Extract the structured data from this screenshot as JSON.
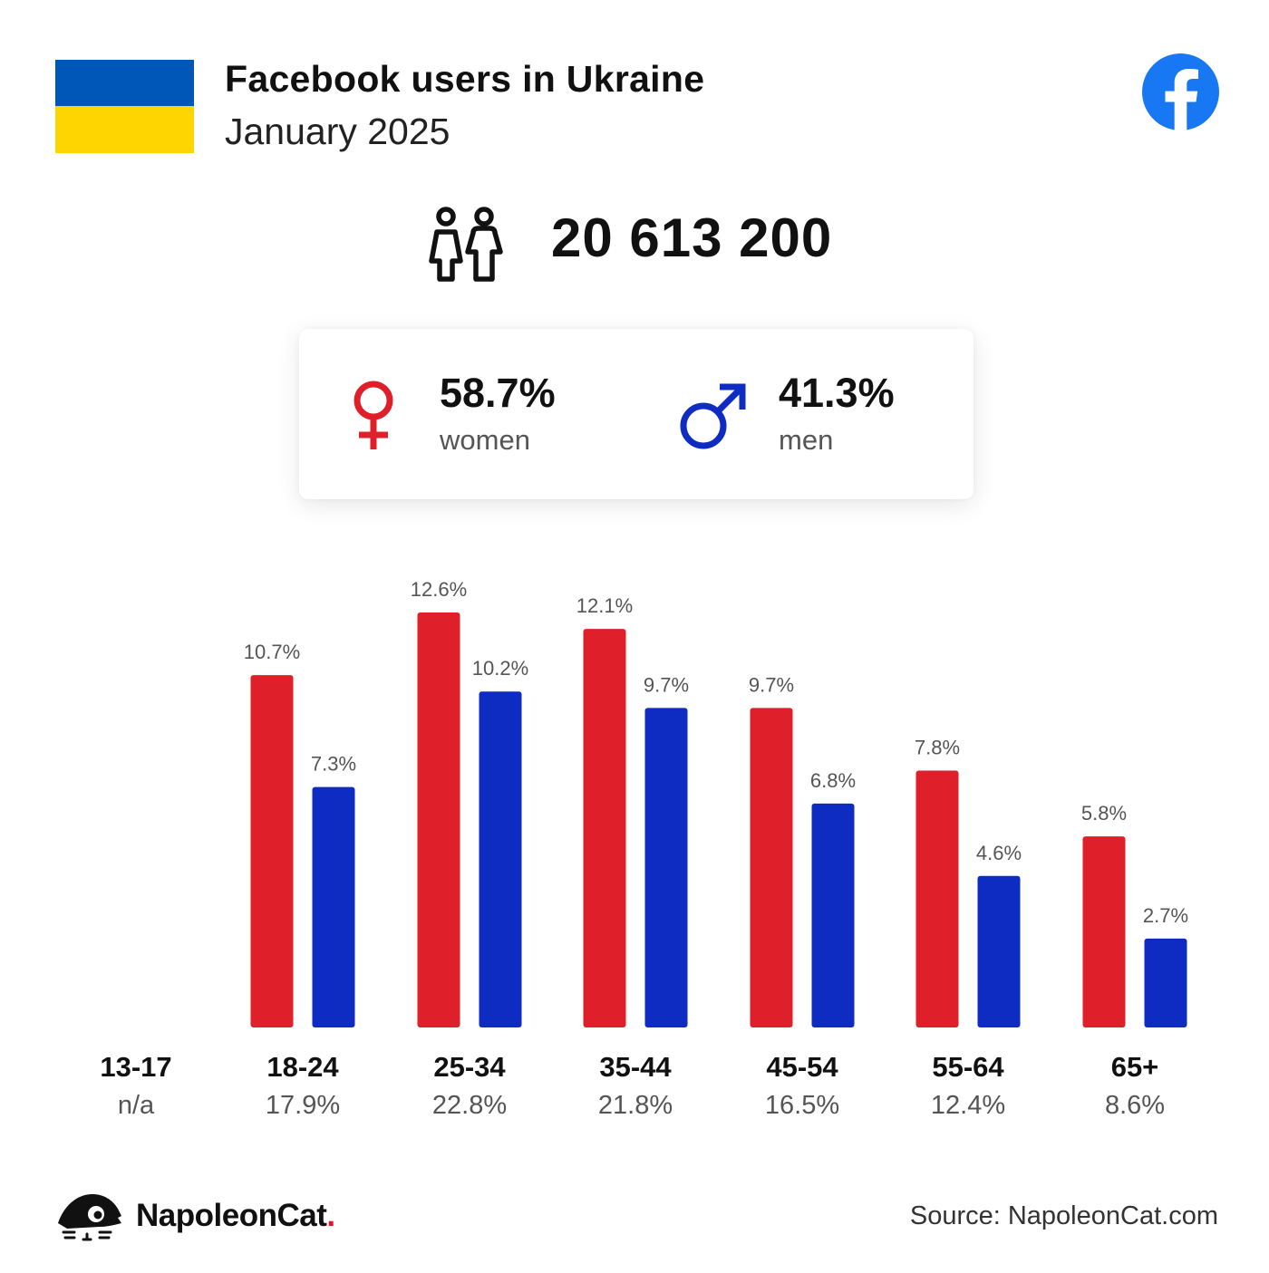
{
  "header": {
    "title": "Facebook users in Ukraine",
    "subtitle": "January 2025"
  },
  "total_users": "20 613 200",
  "gender": {
    "women_pct": "58.7%",
    "women_label": "women",
    "men_pct": "41.3%",
    "men_label": "men"
  },
  "colors": {
    "women": "#df1f2a",
    "men": "#0e2bc2",
    "facebook": "#1877f2",
    "flag_blue": "#0057b7",
    "flag_yellow": "#ffd500"
  },
  "chart_data": {
    "type": "bar",
    "categories": [
      "13-17",
      "18-24",
      "25-34",
      "35-44",
      "45-54",
      "55-64",
      "65+"
    ],
    "category_totals": [
      "n/a",
      "17.9%",
      "22.8%",
      "21.8%",
      "16.5%",
      "12.4%",
      "8.6%"
    ],
    "series": [
      {
        "values": [
          null,
          10.7,
          12.6,
          12.1,
          9.7,
          7.8,
          5.8
        ],
        "labels": [
          "",
          "10.7%",
          "12.6%",
          "12.1%",
          "9.7%",
          "7.8%",
          "5.8%"
        ]
      },
      {
        "values": [
          null,
          7.3,
          10.2,
          9.7,
          6.8,
          4.6,
          2.7
        ],
        "labels": [
          "",
          "7.3%",
          "10.2%",
          "9.7%",
          "6.8%",
          "4.6%",
          "2.7%"
        ]
      }
    ],
    "ylim": [
      0,
      12.6
    ],
    "grid": false,
    "legend": "none"
  },
  "footer": {
    "brand_name": "NapoleonCat",
    "brand_dot": ".",
    "source": "Source: NapoleonCat.com"
  }
}
